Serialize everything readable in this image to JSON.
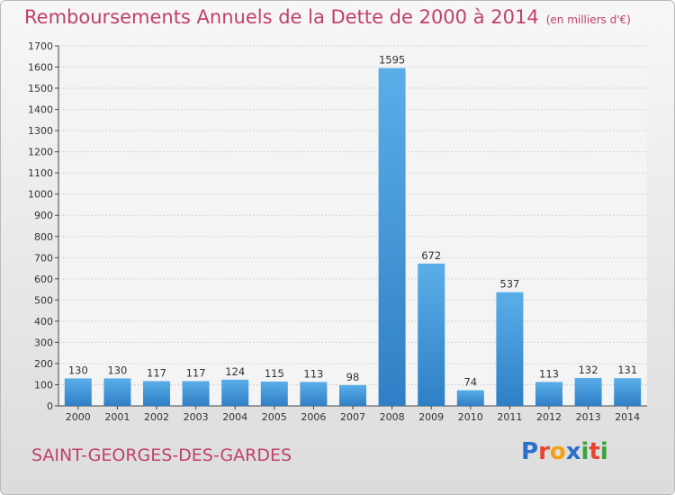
{
  "chart_data": {
    "type": "bar",
    "title": "Remboursements Annuels de la Dette de 2000 à 2014",
    "unit": "(en milliers d'€)",
    "categories": [
      "2000",
      "2001",
      "2002",
      "2003",
      "2004",
      "2005",
      "2006",
      "2007",
      "2008",
      "2009",
      "2010",
      "2011",
      "2012",
      "2013",
      "2014"
    ],
    "values": [
      130,
      130,
      117,
      117,
      124,
      115,
      113,
      98,
      1595,
      672,
      74,
      537,
      113,
      132,
      131
    ],
    "ylim": [
      0,
      1700
    ],
    "yticks": [
      0,
      100,
      200,
      300,
      400,
      500,
      600,
      700,
      800,
      900,
      1000,
      1100,
      1200,
      1300,
      1400,
      1500,
      1600,
      1700
    ],
    "grid": true,
    "bar_color": "#4a9fe0"
  },
  "commune": "SAINT-GEORGES-DES-GARDES",
  "logo": {
    "text": "Proxiti",
    "letters": [
      "P",
      "r",
      "o",
      "x",
      "i",
      "t",
      "i"
    ],
    "colors": [
      "#2a6fc9",
      "#e8452f",
      "#f2a10f",
      "#2a6fc9",
      "#3aa53a",
      "#e8452f",
      "#3aa53a"
    ]
  }
}
